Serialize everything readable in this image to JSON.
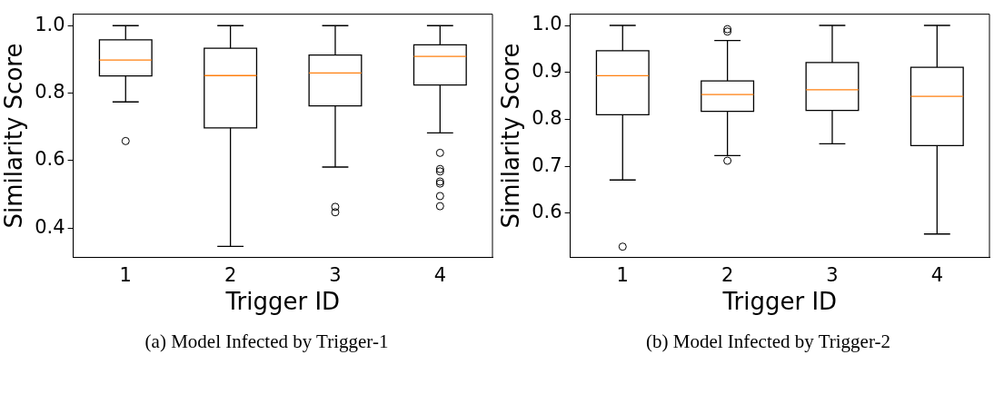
{
  "chart_data": [
    {
      "type": "box",
      "xlabel": "Trigger ID",
      "ylabel": "Similarity Score",
      "annotations": [
        "(a) Model Infected by Trigger-1"
      ],
      "categories": [
        "1",
        "2",
        "3",
        "4"
      ],
      "ylim": [
        0.313,
        1.034
      ],
      "yticks": [
        {
          "value": 0.4,
          "label": "0.4"
        },
        {
          "value": 0.6,
          "label": "0.6"
        },
        {
          "value": 0.8,
          "label": "0.8"
        },
        {
          "value": 1,
          "label": "1.0"
        }
      ],
      "grid": false,
      "color": "#000000",
      "boxes": [
        {
          "low": 0.774,
          "q1": 0.851,
          "median": 0.898,
          "q3": 0.958,
          "high": 1.0,
          "outliers": [
            0.658
          ]
        },
        {
          "low": 0.346,
          "q1": 0.697,
          "median": 0.852,
          "q3": 0.933,
          "high": 1.0
        },
        {
          "low": 0.581,
          "q1": 0.762,
          "median": 0.86,
          "q3": 0.913,
          "high": 1.0,
          "outliers": [
            0.463,
            0.447
          ]
        },
        {
          "low": 0.682,
          "q1": 0.824,
          "median": 0.909,
          "q3": 0.943,
          "high": 1.0,
          "outliers": [
            0.623,
            0.575,
            0.568,
            0.538,
            0.532,
            0.495,
            0.465
          ]
        }
      ]
    },
    {
      "type": "box",
      "xlabel": "Trigger ID",
      "ylabel": "Similarity Score",
      "annotations": [
        "(b) Model Infected by Trigger-2"
      ],
      "categories": [
        "1",
        "2",
        "3",
        "4"
      ],
      "ylim": [
        0.506,
        1.024
      ],
      "yticks": [
        {
          "value": 0.6,
          "label": "0.6"
        },
        {
          "value": 0.7,
          "label": "0.7"
        },
        {
          "value": 0.8,
          "label": "0.8"
        },
        {
          "value": 0.9,
          "label": "0.9"
        },
        {
          "value": 1,
          "label": "1.0"
        }
      ],
      "grid": false,
      "color": "#000000",
      "boxes": [
        {
          "low": 0.671,
          "q1": 0.81,
          "median": 0.893,
          "q3": 0.946,
          "high": 1.0,
          "outliers": [
            0.529
          ]
        },
        {
          "low": 0.723,
          "q1": 0.817,
          "median": 0.853,
          "q3": 0.882,
          "high": 0.968,
          "outliers": [
            0.992,
            0.987,
            0.712
          ]
        },
        {
          "low": 0.748,
          "q1": 0.819,
          "median": 0.863,
          "q3": 0.921,
          "high": 1.0
        },
        {
          "low": 0.556,
          "q1": 0.744,
          "median": 0.849,
          "q3": 0.911,
          "high": 1.0
        }
      ]
    }
  ]
}
